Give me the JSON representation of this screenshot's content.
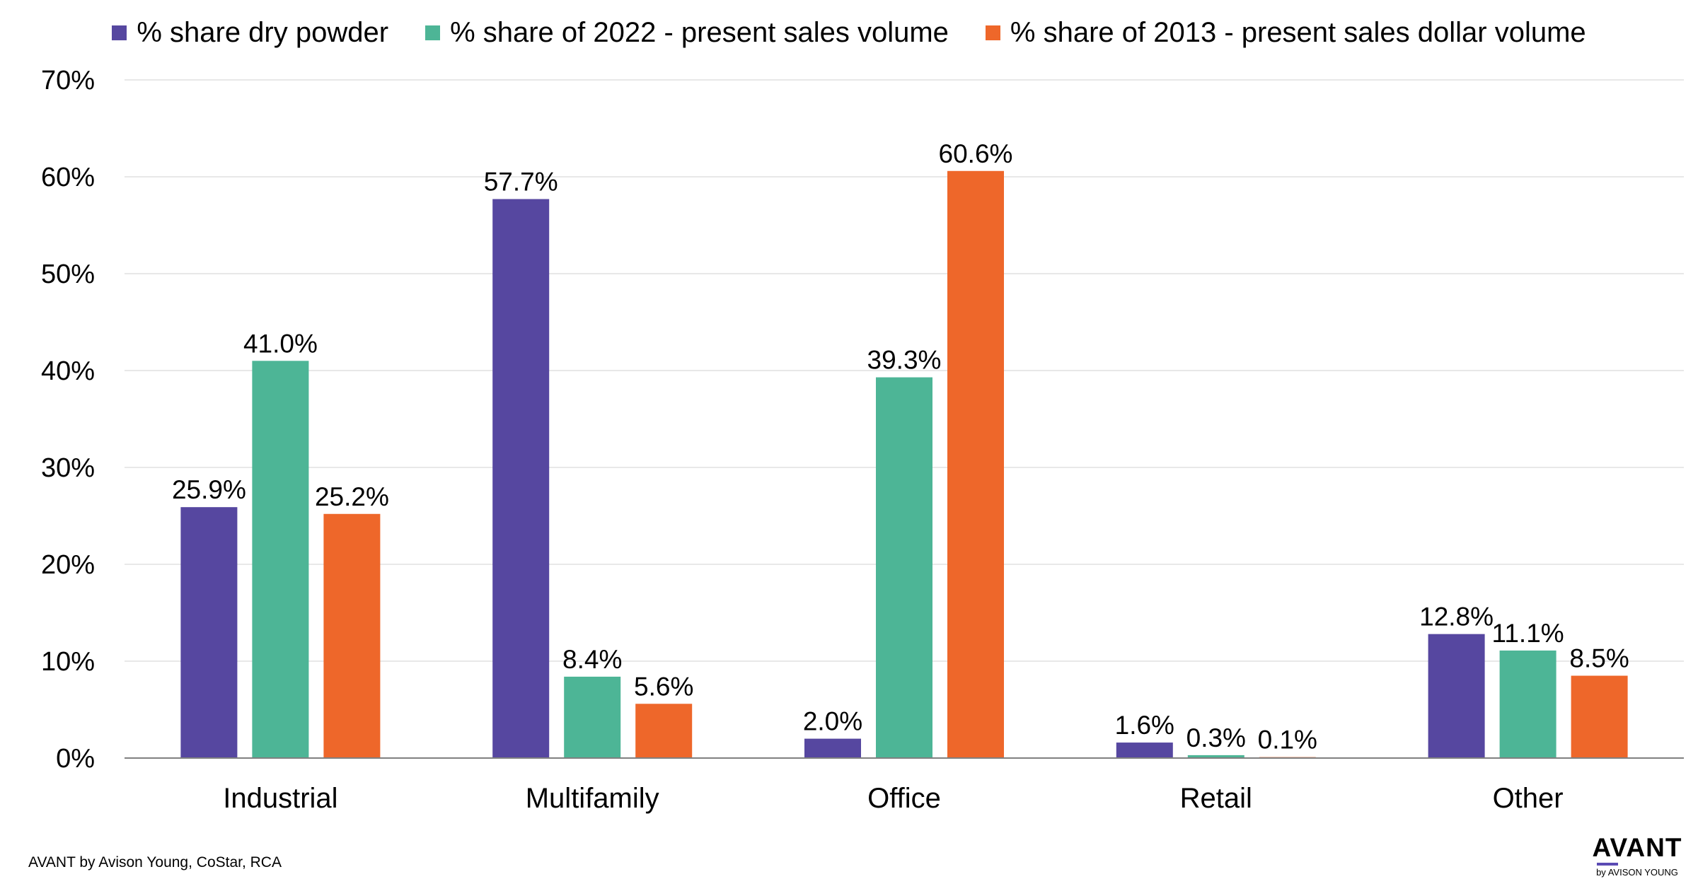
{
  "colors": {
    "series_1": "#5647A0",
    "series_2": "#4DB596",
    "series_3": "#EE672A",
    "grid": "#E0E0E0",
    "axis": "#808080",
    "logo_accent": "#5B4BB4"
  },
  "footer": {
    "source": "AVANT by Avison Young, CoStar, RCA"
  },
  "logo": {
    "main": "AVANT",
    "sub": "by AVISON YOUNG"
  },
  "chart_data": {
    "type": "bar",
    "categories": [
      "Industrial",
      "Multifamily",
      "Office",
      "Retail",
      "Other"
    ],
    "series": [
      {
        "name": "% share dry powder",
        "values": [
          25.9,
          57.7,
          2.0,
          1.6,
          12.8
        ],
        "labels": [
          "25.9%",
          "57.7%",
          "2.0%",
          "1.6%",
          "12.8%"
        ]
      },
      {
        "name": "% share of 2022 - present sales volume",
        "values": [
          41.0,
          8.4,
          39.3,
          0.3,
          11.1
        ],
        "labels": [
          "41.0%",
          "8.4%",
          "39.3%",
          "0.3%",
          "11.1%"
        ]
      },
      {
        "name": "% share of 2013 - present sales dollar volume",
        "values": [
          25.2,
          5.6,
          60.6,
          0.1,
          8.5
        ],
        "labels": [
          "25.2%",
          "5.6%",
          "60.6%",
          "0.1%",
          "8.5%"
        ]
      }
    ],
    "y_ticks": [
      0,
      10,
      20,
      30,
      40,
      50,
      60,
      70
    ],
    "y_tick_labels": [
      "0%",
      "10%",
      "20%",
      "30%",
      "40%",
      "50%",
      "60%",
      "70%"
    ],
    "ylim": [
      0,
      70
    ],
    "grid": true,
    "legend": "top-center"
  }
}
